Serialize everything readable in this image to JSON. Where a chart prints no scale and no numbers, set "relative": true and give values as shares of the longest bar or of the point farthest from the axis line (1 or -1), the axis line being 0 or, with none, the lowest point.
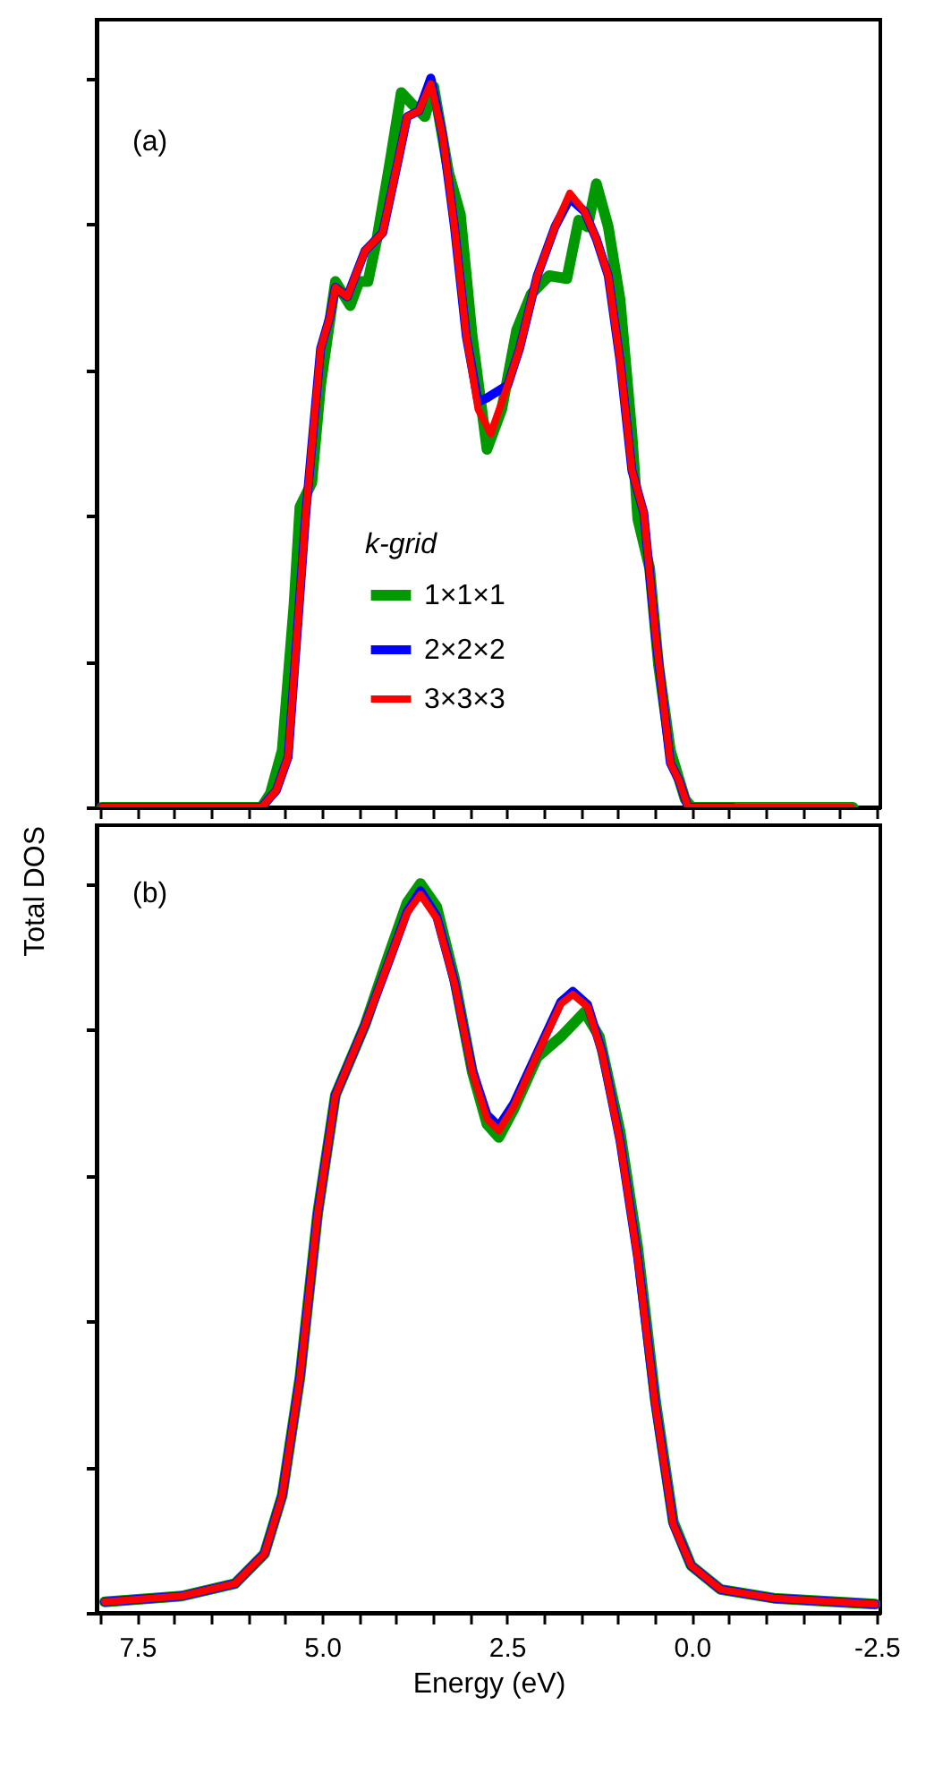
{
  "chart_data": [
    {
      "type": "line",
      "relative": true,
      "annotations": [
        "(a)"
      ],
      "legend_title": "k-grid",
      "legend": "bottom",
      "tick_labels": false,
      "grid": false,
      "xlim": [
        8.05,
        -2.55
      ],
      "xticks": [
        {
          "value": 8.0,
          "label": null
        },
        {
          "value": 7.5,
          "label": null
        },
        {
          "value": 7.0,
          "label": null
        },
        {
          "value": 6.5,
          "label": null
        },
        {
          "value": 6.0,
          "label": null
        },
        {
          "value": 5.5,
          "label": null
        },
        {
          "value": 5.0,
          "label": null
        },
        {
          "value": 4.5,
          "label": null
        },
        {
          "value": 4.0,
          "label": null
        },
        {
          "value": 3.5,
          "label": null
        },
        {
          "value": 3.0,
          "label": null
        },
        {
          "value": 2.5,
          "label": null
        },
        {
          "value": 2.0,
          "label": null
        },
        {
          "value": 1.5,
          "label": null
        },
        {
          "value": 1.0,
          "label": null
        },
        {
          "value": 0.5,
          "label": null
        },
        {
          "value": 0.0,
          "label": null
        },
        {
          "value": -0.5,
          "label": null
        },
        {
          "value": -1.0,
          "label": null
        },
        {
          "value": -1.5,
          "label": null
        },
        {
          "value": -2.0,
          "label": null
        },
        {
          "value": -2.5,
          "label": null
        }
      ],
      "series": [
        {
          "name": "1×1×1",
          "color": "#009900",
          "x": [
            7.98,
            5.82,
            5.7,
            5.54,
            5.38,
            5.3,
            5.14,
            5.02,
            4.82,
            4.62,
            4.5,
            4.38,
            4.26,
            4.09,
            3.93,
            3.77,
            3.61,
            3.49,
            3.29,
            3.13,
            2.97,
            2.77,
            2.57,
            2.37,
            2.17,
            1.93,
            1.69,
            1.53,
            1.41,
            1.29,
            1.13,
            0.97,
            0.81,
            0.73,
            0.57,
            0.45,
            0.29,
            0.09,
            0.0,
            -2.18
          ],
          "values": [
            0,
            0,
            0.019,
            0.078,
            0.278,
            0.412,
            0.445,
            0.579,
            0.721,
            0.688,
            0.721,
            0.721,
            0.779,
            0.88,
            0.98,
            0.963,
            0.947,
            0.988,
            0.871,
            0.813,
            0.646,
            0.491,
            0.546,
            0.654,
            0.704,
            0.729,
            0.725,
            0.805,
            0.796,
            0.855,
            0.796,
            0.696,
            0.512,
            0.395,
            0.328,
            0.195,
            0.078,
            0.011,
            0,
            0
          ]
        },
        {
          "name": "2×2×2",
          "color": "#0000ff",
          "x": [
            7.98,
            5.82,
            5.62,
            5.46,
            5.34,
            5.22,
            5.14,
            5.02,
            4.9,
            4.82,
            4.66,
            4.42,
            4.18,
            3.97,
            3.85,
            3.69,
            3.53,
            3.37,
            3.21,
            3.05,
            2.89,
            2.76,
            2.49,
            2.33,
            2.09,
            1.85,
            1.65,
            1.45,
            1.29,
            1.13,
            0.97,
            0.81,
            0.65,
            0.49,
            0.29,
            0.17,
            0.05,
            -0.55
          ],
          "values": [
            0,
            0,
            0.023,
            0.069,
            0.236,
            0.404,
            0.495,
            0.629,
            0.671,
            0.713,
            0.7,
            0.763,
            0.788,
            0.888,
            0.947,
            0.955,
            1.0,
            0.921,
            0.796,
            0.646,
            0.556,
            0.562,
            0.579,
            0.629,
            0.729,
            0.796,
            0.835,
            0.817,
            0.779,
            0.729,
            0.612,
            0.462,
            0.404,
            0.236,
            0.061,
            0.036,
            0,
            0
          ]
        },
        {
          "name": "3×3×3",
          "color": "#ff0000",
          "x": [
            7.98,
            5.82,
            5.62,
            5.46,
            5.34,
            5.22,
            5.14,
            5.02,
            4.9,
            4.82,
            4.66,
            4.42,
            4.18,
            3.97,
            3.85,
            3.69,
            3.53,
            3.37,
            3.21,
            3.05,
            2.89,
            2.72,
            2.49,
            2.33,
            2.09,
            1.85,
            1.65,
            1.45,
            1.29,
            1.13,
            0.97,
            0.81,
            0.65,
            0.49,
            0.29,
            0.17,
            0.05,
            -2.16
          ],
          "values": [
            0,
            0,
            0.023,
            0.069,
            0.236,
            0.404,
            0.495,
            0.629,
            0.671,
            0.713,
            0.7,
            0.763,
            0.788,
            0.888,
            0.947,
            0.955,
            0.992,
            0.921,
            0.796,
            0.646,
            0.546,
            0.512,
            0.579,
            0.629,
            0.729,
            0.796,
            0.842,
            0.817,
            0.779,
            0.729,
            0.612,
            0.462,
            0.404,
            0.236,
            0.061,
            0.036,
            0,
            0
          ]
        }
      ]
    },
    {
      "type": "line",
      "relative": true,
      "annotations": [
        "(b)"
      ],
      "xlabel": "Energy (eV)",
      "ylabel": "Total DOS",
      "tick_labels": "x",
      "grid": false,
      "xlim": [
        8.05,
        -2.55
      ],
      "xticks": [
        {
          "value": 8.0,
          "label": null
        },
        7.5,
        {
          "value": 7.0,
          "label": null
        },
        {
          "value": 6.5,
          "label": null
        },
        {
          "value": 6.0,
          "label": null
        },
        {
          "value": 5.5,
          "label": null
        },
        {
          "value": 5.0,
          "label": "5.0"
        },
        {
          "value": 4.5,
          "label": null
        },
        {
          "value": 4.0,
          "label": null
        },
        {
          "value": 3.5,
          "label": null
        },
        {
          "value": 3.0,
          "label": null
        },
        2.5,
        {
          "value": 2.0,
          "label": null
        },
        {
          "value": 1.5,
          "label": null
        },
        {
          "value": 1.0,
          "label": null
        },
        {
          "value": 0.5,
          "label": null
        },
        {
          "value": 0.0,
          "label": "0.0"
        },
        {
          "value": -0.5,
          "label": null
        },
        {
          "value": -1.0,
          "label": null
        },
        {
          "value": -1.5,
          "label": null
        },
        {
          "value": -2.0,
          "label": null
        },
        -2.5
      ],
      "series": [
        {
          "color": "#009900",
          "x": [
            7.94,
            6.9,
            6.18,
            5.78,
            5.54,
            5.3,
            5.06,
            4.82,
            4.42,
            4.09,
            3.85,
            3.67,
            3.45,
            3.21,
            2.97,
            2.77,
            2.61,
            2.41,
            2.09,
            1.77,
            1.45,
            1.25,
            0.97,
            0.73,
            0.49,
            0.25,
            0.01,
            -0.39,
            -1.11,
            -2.48
          ],
          "values": [
            0.015,
            0.023,
            0.04,
            0.081,
            0.161,
            0.323,
            0.548,
            0.71,
            0.806,
            0.905,
            0.974,
            1.0,
            0.968,
            0.87,
            0.742,
            0.67,
            0.652,
            0.69,
            0.762,
            0.79,
            0.824,
            0.79,
            0.66,
            0.5,
            0.29,
            0.125,
            0.065,
            0.032,
            0.02,
            0.012
          ]
        },
        {
          "color": "#0000ff",
          "x": [
            7.94,
            6.9,
            6.18,
            5.78,
            5.54,
            5.3,
            5.06,
            4.82,
            4.42,
            4.09,
            3.85,
            3.67,
            3.45,
            3.21,
            2.97,
            2.77,
            2.61,
            2.41,
            2.09,
            1.77,
            1.61,
            1.41,
            1.21,
            0.97,
            0.73,
            0.49,
            0.25,
            0.01,
            -0.39,
            -1.11,
            -2.48
          ],
          "values": [
            0.015,
            0.023,
            0.04,
            0.081,
            0.161,
            0.323,
            0.548,
            0.71,
            0.806,
            0.895,
            0.962,
            0.99,
            0.955,
            0.865,
            0.745,
            0.683,
            0.667,
            0.698,
            0.768,
            0.838,
            0.852,
            0.834,
            0.768,
            0.647,
            0.486,
            0.284,
            0.122,
            0.065,
            0.032,
            0.02,
            0.012
          ]
        },
        {
          "color": "#ff0000",
          "x": [
            7.94,
            6.9,
            6.18,
            5.78,
            5.54,
            5.3,
            5.06,
            4.82,
            4.42,
            4.09,
            3.85,
            3.67,
            3.45,
            3.21,
            2.97,
            2.77,
            2.61,
            2.41,
            2.09,
            1.77,
            1.61,
            1.41,
            1.21,
            0.97,
            0.73,
            0.49,
            0.25,
            0.01,
            -0.39,
            -1.11,
            -2.48
          ],
          "values": [
            0.015,
            0.023,
            0.04,
            0.081,
            0.161,
            0.323,
            0.548,
            0.71,
            0.806,
            0.895,
            0.96,
            0.985,
            0.952,
            0.863,
            0.742,
            0.677,
            0.661,
            0.694,
            0.766,
            0.835,
            0.848,
            0.831,
            0.766,
            0.645,
            0.484,
            0.282,
            0.121,
            0.065,
            0.032,
            0.02,
            0.012
          ]
        }
      ]
    }
  ]
}
